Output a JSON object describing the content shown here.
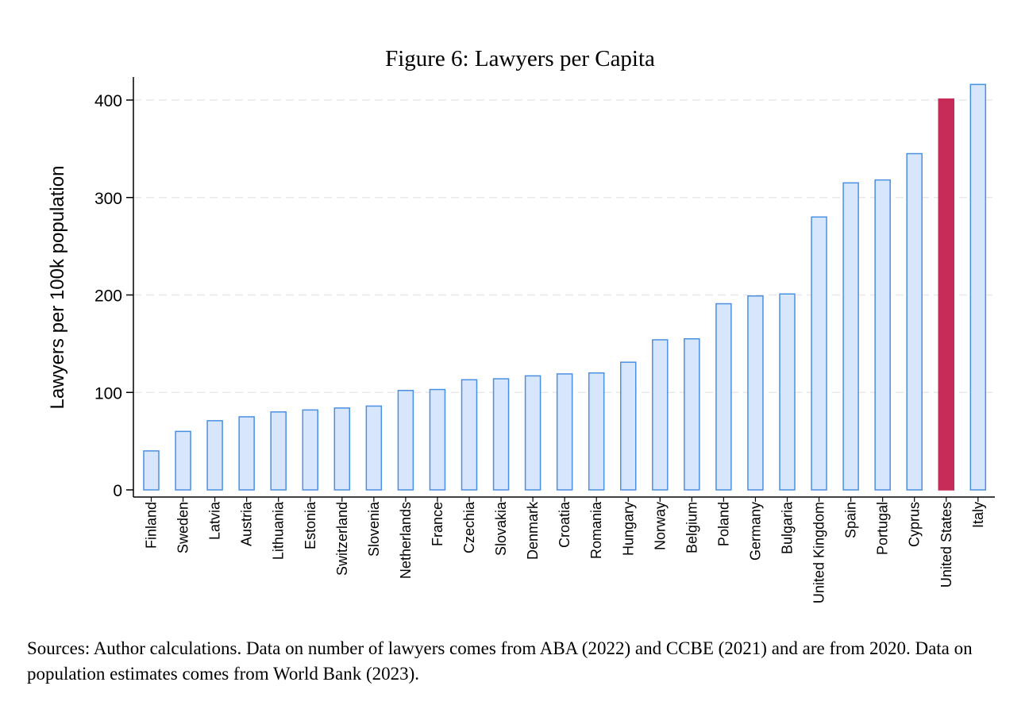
{
  "chart_data": {
    "type": "bar",
    "title": "Figure 6: Lawyers per Capita",
    "xlabel": "",
    "ylabel": "Lawyers per 100k population",
    "ylim": [
      0,
      425
    ],
    "yticks": [
      0,
      100,
      200,
      300,
      400
    ],
    "grid": true,
    "categories": [
      "Finland",
      "Sweden",
      "Latvia",
      "Austria",
      "Lithuania",
      "Estonia",
      "Switzerland",
      "Slovenia",
      "Netherlands",
      "France",
      "Czechia",
      "Slovakia",
      "Denmark",
      "Croatia",
      "Romania",
      "Hungary",
      "Norway",
      "Belgium",
      "Poland",
      "Germany",
      "Bulgaria",
      "United Kingdom",
      "Spain",
      "Portugal",
      "Cyprus",
      "United States",
      "Italy"
    ],
    "values": [
      40,
      60,
      71,
      75,
      80,
      82,
      84,
      86,
      102,
      103,
      113,
      114,
      117,
      119,
      120,
      131,
      154,
      155,
      191,
      199,
      201,
      280,
      315,
      318,
      345,
      401,
      416
    ],
    "highlight": "United States",
    "colors": {
      "bar_fill": "#d7e6fb",
      "bar_stroke": "#4a90e2",
      "highlight_fill": "#c72c59",
      "axis": "#000000",
      "grid": "#e8e8e8"
    }
  },
  "source_note": "Sources: Author calculations. Data on number of lawyers comes from ABA (2022) and CCBE (2021) and are from 2020. Data on population estimates comes from World Bank (2023)."
}
